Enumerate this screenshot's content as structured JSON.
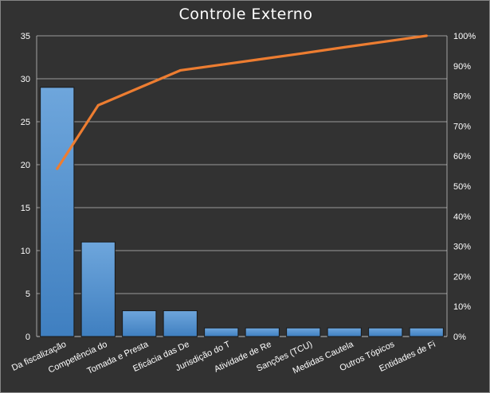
{
  "chart_data": {
    "type": "bar",
    "title": "Controle Externo",
    "xlabel": "",
    "ylabel": "",
    "categories": [
      "Da fiscalização",
      "Competência do",
      "Tomada e Presta",
      "Eficácia das De",
      "Jurisdição do T",
      "Atividade de Re",
      "Sanções (TCU)",
      "Medidas Cautela",
      "Outros Tópicos",
      "Entidades de Fi"
    ],
    "series": [
      {
        "type": "bar",
        "values": [
          29,
          11,
          3,
          3,
          1,
          1,
          1,
          1,
          1,
          1
        ],
        "color": "#5b9bd5",
        "axis": "left"
      },
      {
        "type": "line",
        "values": [
          55.8,
          76.9,
          82.7,
          88.5,
          90.4,
          92.3,
          94.2,
          96.2,
          98.1,
          100
        ],
        "color": "#ed7d31",
        "axis": "right",
        "unit": "%"
      }
    ],
    "y_left": {
      "min": 0,
      "max": 35,
      "ticks": [
        "0",
        "5",
        "10",
        "15",
        "20",
        "25",
        "30",
        "35"
      ]
    },
    "y_right": {
      "min": 0,
      "max": 100,
      "ticks": [
        "0%",
        "10%",
        "20%",
        "30%",
        "40%",
        "50%",
        "60%",
        "70%",
        "80%",
        "90%",
        "100%"
      ]
    },
    "grid": true,
    "legend": "none",
    "colors": {
      "background": "#323232",
      "gridline": "#bfbfbf",
      "bar": "#5b9bd5",
      "line": "#ed7d31",
      "text": "#ffffff"
    }
  }
}
